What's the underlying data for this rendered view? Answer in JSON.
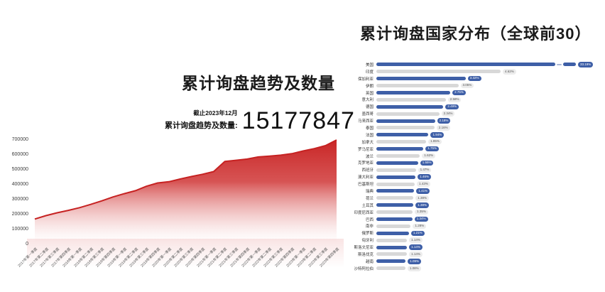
{
  "left_panel": {
    "title": "累计询盘趋势及数量",
    "note_caption": "截止2023年12月",
    "note_label": "累计询盘趋势及数量:",
    "note_value": "15177847"
  },
  "right_panel": {
    "title": "累计询盘国家分布（全球前30）"
  },
  "colors": {
    "area_red": "#c92626",
    "area_line": "#c62222",
    "bar_blue": "#3e5fa7",
    "bar_gray": "#d8d8d8",
    "badge_gray_bg": "#ececec"
  },
  "chart_data": [
    {
      "type": "area",
      "title": "累计询盘趋势及数量",
      "xlabel": "",
      "ylabel": "",
      "ylim": [
        0,
        700000
      ],
      "grid": false,
      "y_ticks": [
        "0",
        "100000",
        "200000",
        "300000",
        "400000",
        "500000",
        "600000",
        "700000"
      ],
      "x": [
        "2017年第一季度",
        "2017年第二季度",
        "2017年第三季度",
        "2017年第四季度",
        "2018年第一季度",
        "2018年第二季度",
        "2018年第三季度",
        "2018年第四季度",
        "2019年第一季度",
        "2019年第二季度",
        "2019年第三季度",
        "2019年第四季度",
        "2020年第一季度",
        "2020年第二季度",
        "2020年第三季度",
        "2020年第四季度",
        "2021年第一季度",
        "2021年第二季度",
        "2021年第三季度",
        "2021年第四季度",
        "2022年第一季度",
        "2022年第二季度",
        "2022年第三季度",
        "2022年第四季度",
        "2023年第一季度",
        "2023年第二季度",
        "2023年第三季度",
        "2023年第四季度"
      ],
      "values": [
        170000,
        193000,
        212000,
        228000,
        246000,
        268000,
        292000,
        318000,
        340000,
        360000,
        390000,
        412000,
        420000,
        438000,
        455000,
        470000,
        488000,
        556000,
        564000,
        572000,
        586000,
        592000,
        598000,
        608000,
        626000,
        642000,
        662000,
        700000
      ]
    },
    {
      "type": "bar",
      "orientation": "horizontal",
      "title": "累计询盘国家分布（全球前30）",
      "axis_break_country": "美国",
      "max_axis_pct": 4.62,
      "rows": [
        {
          "country": "美国",
          "label": "33.19%",
          "break": true
        },
        {
          "country": "印度",
          "label": "4.62%"
        },
        {
          "country": "保加利亚",
          "label": "3.32%"
        },
        {
          "country": "伊朗",
          "label": "3.05%"
        },
        {
          "country": "英国",
          "label": "2.75%"
        },
        {
          "country": "意大利",
          "label": "2.58%"
        },
        {
          "country": "德国",
          "label": "2.49%"
        },
        {
          "country": "墨西哥",
          "label": "2.34%"
        },
        {
          "country": "马来西亚",
          "label": "2.18%"
        },
        {
          "country": "泰国",
          "label": "2.16%"
        },
        {
          "country": "法国",
          "label": "1.94%"
        },
        {
          "country": "加拿大",
          "label": "1.85%"
        },
        {
          "country": "罗马尼亚",
          "label": "1.75%"
        },
        {
          "country": "波兰",
          "label": "1.62%"
        },
        {
          "country": "克罗地亚",
          "label": "1.55%"
        },
        {
          "country": "西班牙",
          "label": "1.47%"
        },
        {
          "country": "澳大利亚",
          "label": "1.46%"
        },
        {
          "country": "巴基斯坦",
          "label": "1.43%"
        },
        {
          "country": "瑞典",
          "label": "1.41%"
        },
        {
          "country": "荷兰",
          "label": "1.38%"
        },
        {
          "country": "土耳其",
          "label": "1.38%"
        },
        {
          "country": "印度尼西亚",
          "label": "1.35%"
        },
        {
          "country": "巴西",
          "label": "1.34%"
        },
        {
          "country": "南非",
          "label": "1.28%"
        },
        {
          "country": "俄罗斯",
          "label": "1.21%"
        },
        {
          "country": "匈牙利",
          "label": "1.14%"
        },
        {
          "country": "斯洛文尼亚",
          "label": "1.14%"
        },
        {
          "country": "斯洛伐克",
          "label": "1.14%"
        },
        {
          "country": "越南",
          "label": "1.09%"
        },
        {
          "country": "沙特阿拉伯",
          "label": "1.08%"
        }
      ]
    }
  ]
}
